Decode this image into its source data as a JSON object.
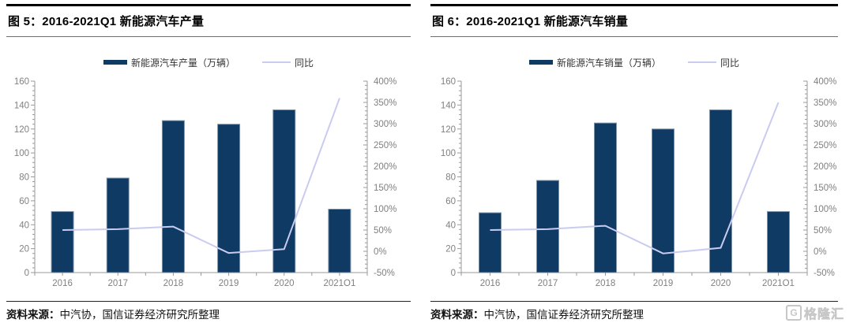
{
  "colors": {
    "bar_fill": "#0e3a63",
    "bar_stroke": "#7d93a8",
    "line": "#c9cbf0",
    "axis": "#999999",
    "axis_text": "#808080",
    "title_text": "#000000"
  },
  "panels": [
    {
      "title": "图 5：2016-2021Q1 新能源汽车产量",
      "source_label": "资料来源：",
      "source_text": "中汽协，国信证券经济研究所整理"
    },
    {
      "title": "图 6：2016-2021Q1 新能源汽车销量",
      "source_label": "资料来源：",
      "source_text": "中汽协，国信证券经济研究所整理"
    }
  ],
  "watermark": {
    "icon": "gelonghui-g-icon",
    "g_letter": "G",
    "text": "格隆汇"
  },
  "chart_data": [
    {
      "type": "combo-bar-line",
      "title": "图 5：2016-2021Q1 新能源汽车产量",
      "categories": [
        "2016",
        "2017",
        "2018",
        "2019",
        "2020",
        "2021Q1"
      ],
      "series": [
        {
          "name": "新能源汽车产量（万辆）",
          "type": "bar",
          "axis": "left",
          "values": [
            51,
            79,
            127,
            124,
            136,
            53
          ],
          "color": "#0e3a63"
        },
        {
          "name": "同比",
          "type": "line",
          "axis": "right",
          "values": [
            50,
            52,
            58,
            -4,
            5,
            360
          ],
          "color": "#c9cbf0"
        }
      ],
      "left_axis": {
        "min": 0,
        "max": 160,
        "step": 20,
        "minor_step": 4,
        "ticks": [
          0,
          20,
          40,
          60,
          80,
          100,
          120,
          140,
          160
        ]
      },
      "right_axis": {
        "min": -50,
        "max": 400,
        "step": 50,
        "minor_step": 10,
        "format": "percent",
        "ticks": [
          "-50%",
          "0%",
          "50%",
          "100%",
          "150%",
          "200%",
          "250%",
          "300%",
          "350%",
          "400%"
        ]
      },
      "legend_position": "top",
      "grid": false
    },
    {
      "type": "combo-bar-line",
      "title": "图 6：2016-2021Q1 新能源汽车销量",
      "categories": [
        "2016",
        "2017",
        "2018",
        "2019",
        "2020",
        "2021Q1"
      ],
      "series": [
        {
          "name": "新能源汽车销量（万辆）",
          "type": "bar",
          "axis": "left",
          "values": [
            50,
            77,
            125,
            120,
            136,
            51
          ],
          "color": "#0e3a63"
        },
        {
          "name": "同比",
          "type": "line",
          "axis": "right",
          "values": [
            50,
            52,
            60,
            -5,
            8,
            350
          ],
          "color": "#c9cbf0"
        }
      ],
      "left_axis": {
        "min": 0,
        "max": 160,
        "step": 20,
        "minor_step": 4,
        "ticks": [
          0,
          20,
          40,
          60,
          80,
          100,
          120,
          140,
          160
        ]
      },
      "right_axis": {
        "min": -50,
        "max": 400,
        "step": 50,
        "minor_step": 10,
        "format": "percent",
        "ticks": [
          "-50%",
          "0%",
          "50%",
          "100%",
          "150%",
          "200%",
          "250%",
          "300%",
          "350%",
          "400%"
        ]
      },
      "legend_position": "top",
      "grid": false
    }
  ]
}
